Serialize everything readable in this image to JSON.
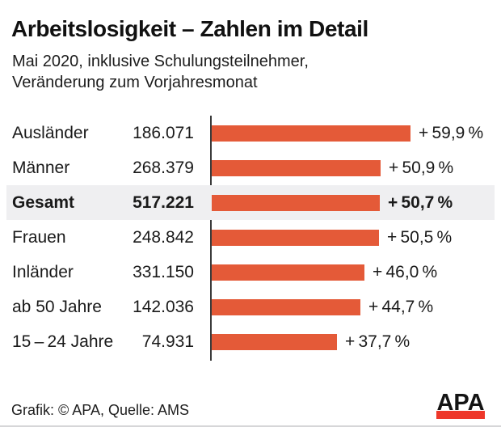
{
  "header": {
    "title": "Arbeitslosigkeit – Zahlen im Detail",
    "subtitle_line1": "Mai 2020, inklusive Schulungsteilnehmer,",
    "subtitle_line2": "Veränderung zum Vorjahresmonat"
  },
  "chart_data": {
    "type": "bar",
    "orientation": "horizontal",
    "title": "Arbeitslosigkeit – Zahlen im Detail",
    "categories": [
      "Ausländer",
      "Männer",
      "Gesamt",
      "Frauen",
      "Inländer",
      "ab 50 Jahre",
      "15 – 24 Jahre"
    ],
    "absolute_counts": [
      "186.071",
      "268.379",
      "517.221",
      "248.842",
      "331.150",
      "142.036",
      "74.931"
    ],
    "values": [
      59.9,
      50.9,
      50.7,
      50.5,
      46.0,
      44.7,
      37.7
    ],
    "value_labels": [
      "+ 59,9 %",
      "+ 50,9 %",
      "+ 50,7 %",
      "+ 50,5 %",
      "+ 46,0 %",
      "+ 44,7 %",
      "+ 37,7 %"
    ],
    "highlight_index": 2,
    "highlight_category": "Gesamt",
    "xlim": [
      0,
      60
    ],
    "grid": false,
    "legend": false
  },
  "footer": {
    "credit": "Grafik: © APA, Quelle: AMS",
    "logo_text": "APA"
  },
  "colors": {
    "bar": "#E45A38",
    "highlight_row_bg": "#EFEFF1",
    "logo_red": "#EE372A",
    "axis": "#3B3B3B",
    "text": "#1A1A1A"
  }
}
